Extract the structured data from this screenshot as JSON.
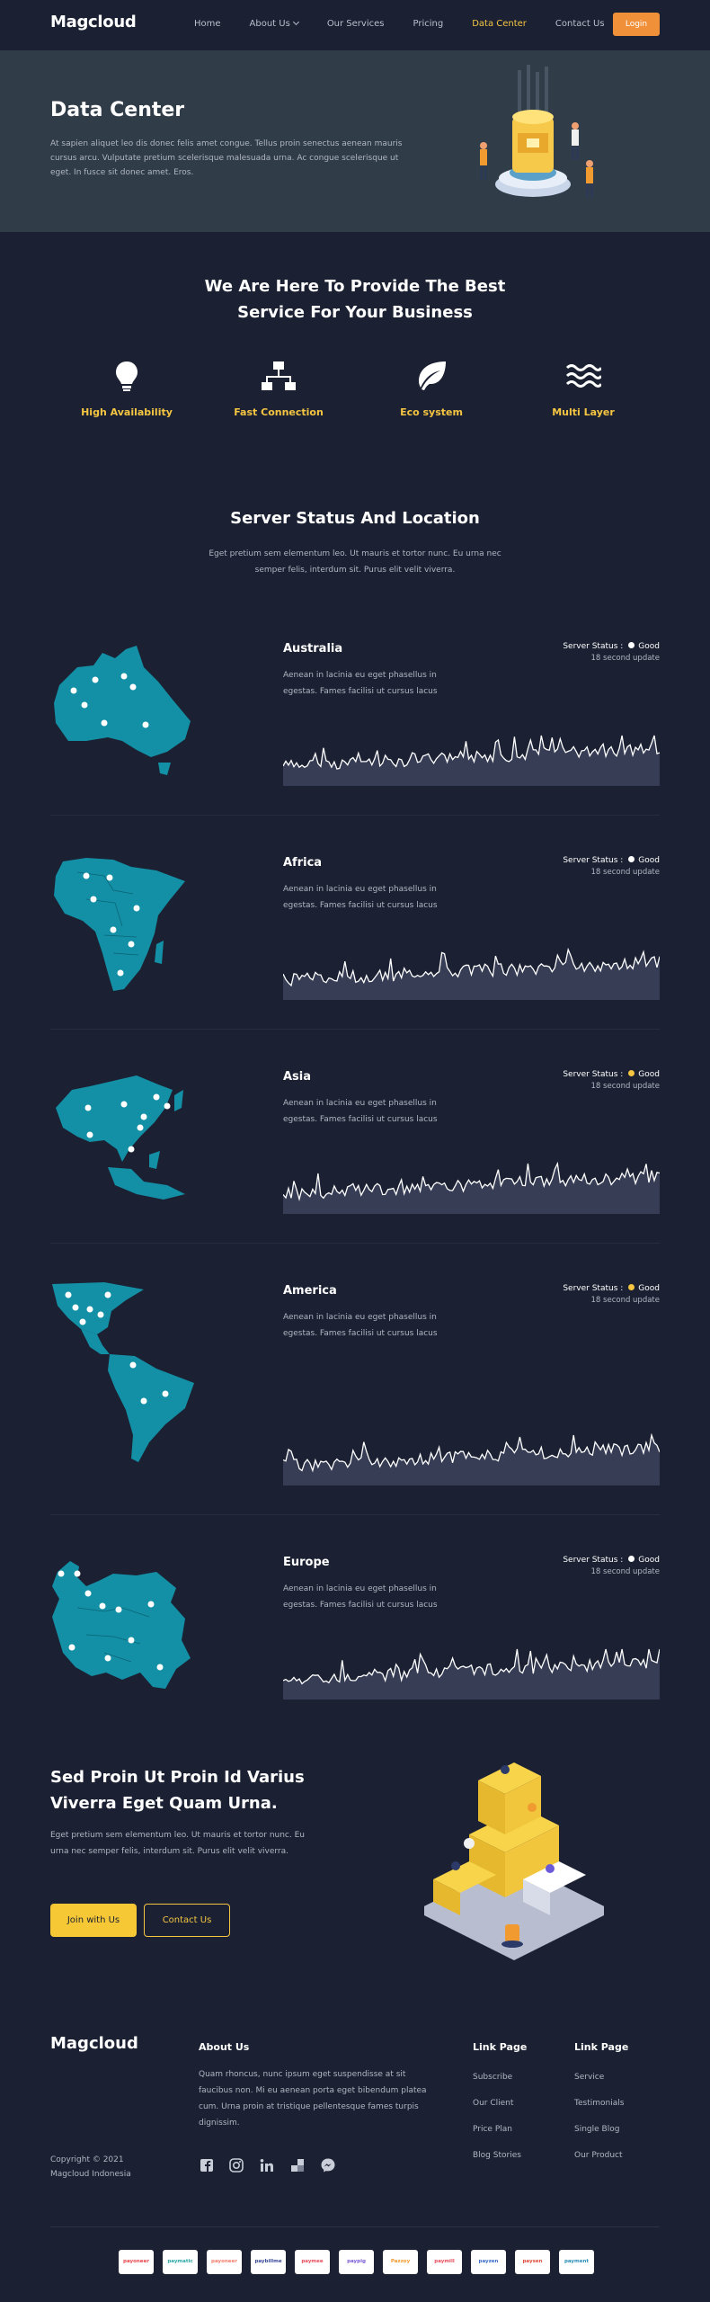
{
  "nav": {
    "logo": "Magcloud",
    "links": [
      "Home",
      "About Us",
      "Our Services",
      "Pricing",
      "Data Center",
      "Contact Us"
    ],
    "active": "Data Center",
    "login": "Login"
  },
  "hero": {
    "title": "Data Center",
    "text": "At sapien aliquet leo dis donec felis amet congue. Tellus proin senectus aenean mauris cursus arcu. Vulputate pretium scelerisque malesuada urna. Ac congue scelerisque ut eget. In fusce sit donec amet. Eros."
  },
  "provide": {
    "title_line1": "We Are Here To Provide The Best",
    "title_line2": "Service For Your Business",
    "features": [
      {
        "label": "High Availability",
        "icon": "lightbulb-icon"
      },
      {
        "label": "Fast Connection",
        "icon": "network-icon"
      },
      {
        "label": "Eco system",
        "icon": "leaf-icon"
      },
      {
        "label": "Multi Layer",
        "icon": "waves-icon"
      }
    ]
  },
  "servers": {
    "title": "Server Status And Location",
    "text": "Eget pretium sem elementum leo. Ut mauris et tortor nunc. Eu urna nec semper felis, interdum sit. Purus elit velit viverra.",
    "status_label": "Server Status :",
    "items": [
      {
        "region": "Australia",
        "text": "Aenean in lacinia eu eget phasellus in egestas. Fames facilisi ut cursus lacus",
        "status": "Good",
        "dot_color": "#ffffff",
        "update": "18 second update"
      },
      {
        "region": "Africa",
        "text": "Aenean in lacinia eu eget phasellus in egestas. Fames facilisi ut cursus lacus",
        "status": "Good",
        "dot_color": "#ffffff",
        "update": "18 second update"
      },
      {
        "region": "Asia",
        "text": "Aenean in lacinia eu eget phasellus in egestas. Fames facilisi ut cursus lacus",
        "status": "Good",
        "dot_color": "#f5c542",
        "update": "18 second update"
      },
      {
        "region": "America",
        "text": "Aenean in lacinia eu eget phasellus in egestas. Fames facilisi ut cursus lacus",
        "status": "Good",
        "dot_color": "#f5c542",
        "update": "18 second update"
      },
      {
        "region": "Europe",
        "text": "Aenean in lacinia eu eget phasellus in egestas. Fames facilisi ut cursus lacus",
        "status": "Good",
        "dot_color": "#ffffff",
        "update": "18 second update"
      }
    ]
  },
  "cta": {
    "title": "Sed Proin Ut Proin Id Varius Viverra Eget Quam Urna.",
    "text": "Eget pretium sem elementum leo. Ut mauris et tortor nunc. Eu urna nec semper felis, interdum sit. Purus elit velit viverra.",
    "primary": "Join with Us",
    "secondary": "Contact Us"
  },
  "footer": {
    "logo": "Magcloud",
    "copyright_line1": "Copyright © 2021",
    "copyright_line2": "Magcloud Indonesia",
    "about_title": "About Us",
    "about_text": "Quam rhoncus, nunc ipsum eget suspendisse at sit faucibus non. Mi eu aenean porta eget bibendum platea cum. Urna proin at tristique pellentesque fames turpis dignissim.",
    "socials": [
      "facebook-icon",
      "instagram-icon",
      "linkedin-icon",
      "delicious-icon",
      "messenger-icon"
    ],
    "col1_title": "Link Page",
    "col1_links": [
      "Subscribe",
      "Our Client",
      "Price Plan",
      "Blog Stories"
    ],
    "col2_title": "Link Page",
    "col2_links": [
      "Service",
      "Testimonials",
      "Single Blog",
      "Our Product"
    ],
    "payments": [
      "payoneer",
      "paymatic",
      "payoneer",
      "paybillme",
      "paymee",
      "paypig",
      "Pazzoy",
      "paymill",
      "payzen",
      "paysen",
      "payment"
    ],
    "payment_colors": [
      "#e8454b",
      "#2aa7a8",
      "#f37c6d",
      "#3a4a9a",
      "#e84c5a",
      "#7a5ad8",
      "#f39a2b",
      "#e74c5c",
      "#3a6cc8",
      "#e04a3a",
      "#2a8db8"
    ]
  }
}
